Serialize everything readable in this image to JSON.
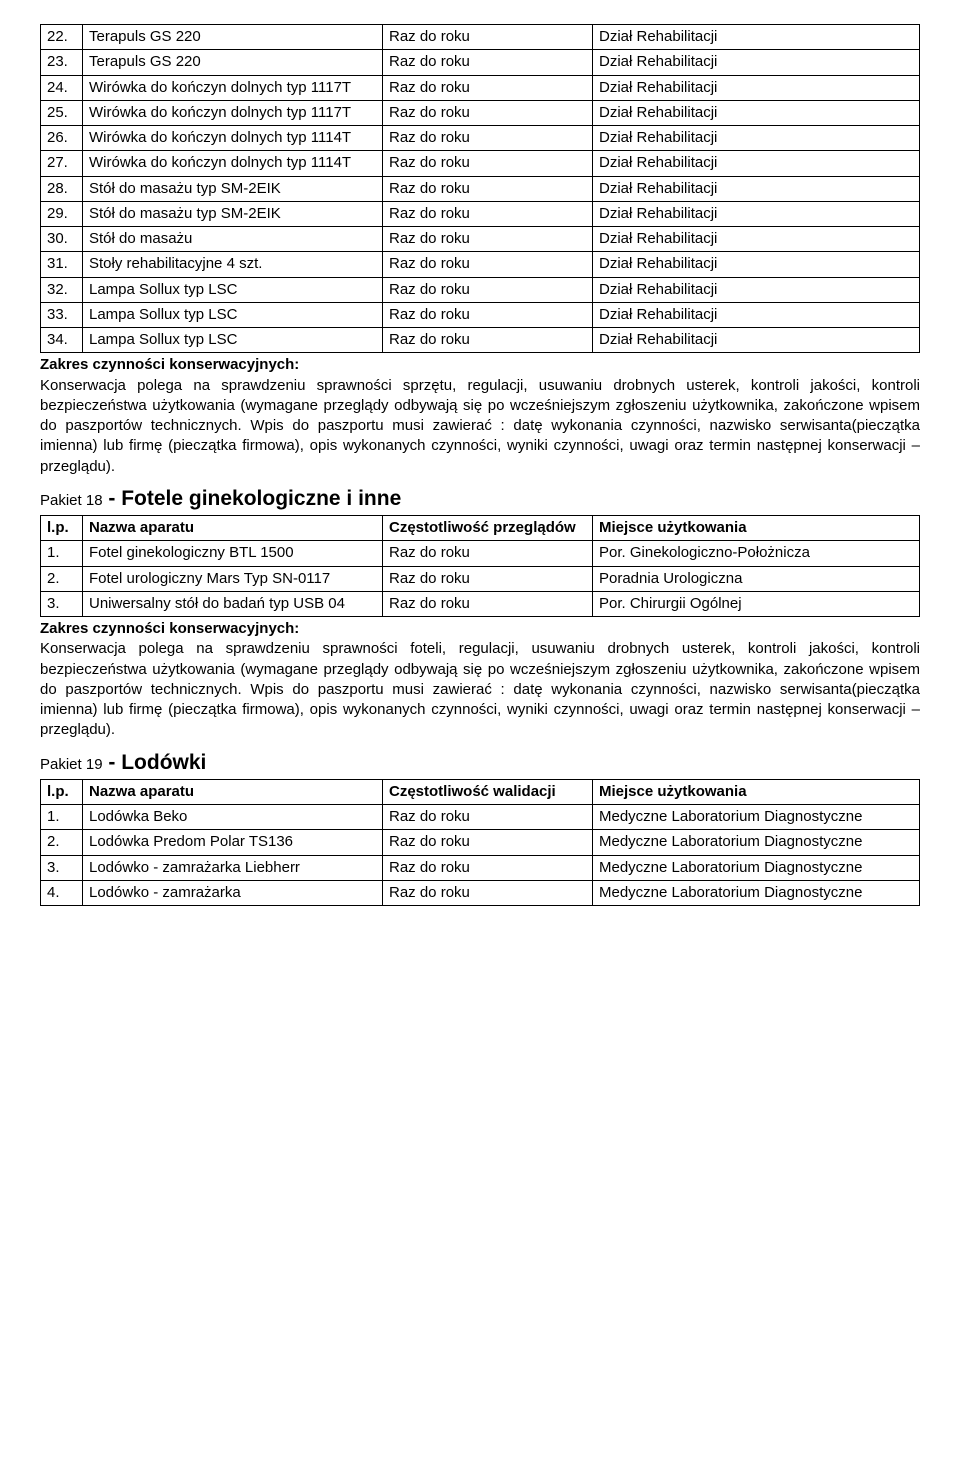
{
  "table1": {
    "rows": [
      {
        "n": "22.",
        "name": "Terapuls GS 220",
        "freq": "Raz do roku",
        "loc": "Dział Rehabilitacji"
      },
      {
        "n": "23.",
        "name": "Terapuls GS 220",
        "freq": "Raz do roku",
        "loc": "Dział Rehabilitacji"
      },
      {
        "n": "24.",
        "name": "Wirówka do kończyn dolnych typ 1117T",
        "freq": "Raz do roku",
        "loc": "Dział Rehabilitacji"
      },
      {
        "n": "25.",
        "name": "Wirówka do kończyn dolnych typ 1117T",
        "freq": "Raz do roku",
        "loc": "Dział Rehabilitacji"
      },
      {
        "n": "26.",
        "name": "Wirówka do kończyn dolnych typ 1114T",
        "freq": "Raz do roku",
        "loc": "Dział Rehabilitacji"
      },
      {
        "n": "27.",
        "name": "Wirówka do kończyn dolnych typ 1114T",
        "freq": "Raz do roku",
        "loc": "Dział Rehabilitacji"
      },
      {
        "n": "28.",
        "name": "Stół do masażu typ SM-2EIK",
        "freq": "Raz do roku",
        "loc": "Dział Rehabilitacji"
      },
      {
        "n": "29.",
        "name": "Stół do masażu typ SM-2EIK",
        "freq": "Raz do roku",
        "loc": "Dział Rehabilitacji"
      },
      {
        "n": "30.",
        "name": "Stół do masażu",
        "freq": "Raz do roku",
        "loc": "Dział Rehabilitacji"
      },
      {
        "n": "31.",
        "name": "Stoły rehabilitacyjne 4 szt.",
        "freq": "Raz do roku",
        "loc": "Dział Rehabilitacji"
      },
      {
        "n": "32.",
        "name": "Lampa Sollux  typ LSC",
        "freq": "Raz do roku",
        "loc": "Dział Rehabilitacji"
      },
      {
        "n": "33.",
        "name": "Lampa Sollux  typ LSC",
        "freq": "Raz do roku",
        "loc": "Dział Rehabilitacji"
      },
      {
        "n": "34.",
        "name": "Lampa Sollux  typ LSC",
        "freq": "Raz do roku",
        "loc": "Dział Rehabilitacji"
      }
    ]
  },
  "para1_heading": "Zakres czynności konserwacyjnych:",
  "para1": "Konserwacja polega na sprawdzeniu sprawności sprzętu, regulacji, usuwaniu drobnych usterek, kontroli jakości, kontroli bezpieczeństwa użytkowania  (wymagane przeglądy odbywają się po wcześniejszym zgłoszeniu użytkownika, zakończone wpisem do paszportów technicznych. Wpis do paszportu musi zawierać : datę wykonania czynności, nazwisko serwisanta(pieczątka imienna) lub firmę (pieczątka firmowa), opis wykonanych czynności, wyniki czynności, uwagi oraz termin następnej konserwacji – przeglądu).",
  "section18_prefix": "Pakiet 18",
  "section18_suffix": " - Fotele ginekologiczne i inne",
  "table2": {
    "header": {
      "n": "l.p.",
      "name": "Nazwa aparatu",
      "freq": "Częstotliwość przeglądów",
      "loc": "Miejsce użytkowania"
    },
    "rows": [
      {
        "n": "1.",
        "name": "Fotel ginekologiczny BTL 1500",
        "freq": "Raz do roku",
        "loc": "Por. Ginekologiczno-Położnicza"
      },
      {
        "n": "2.",
        "name": "Fotel urologiczny Mars Typ SN-0117",
        "freq": "Raz do roku",
        "loc": "Poradnia Urologiczna"
      },
      {
        "n": "3.",
        "name": "Uniwersalny stół do badań typ USB 04",
        "freq": "Raz do roku",
        "loc": "Por. Chirurgii Ogólnej"
      }
    ]
  },
  "para2_heading": "Zakres czynności konserwacyjnych:",
  "para2": "Konserwacja polega na sprawdzeniu sprawności foteli, regulacji, usuwaniu drobnych usterek, kontroli jakości, kontroli bezpieczeństwa użytkowania (wymagane przeglądy odbywają się po wcześniejszym zgłoszeniu użytkownika, zakończone wpisem do paszportów technicznych. Wpis do paszportu musi zawierać : datę wykonania czynności, nazwisko serwisanta(pieczątka imienna) lub  firmę (pieczątka firmowa), opis wykonanych czynności, wyniki czynności, uwagi oraz termin następnej konserwacji – przeglądu).",
  "section19_prefix": "Pakiet 19",
  "section19_suffix": " -  Lodówki",
  "table3": {
    "header": {
      "n": "l.p.",
      "name": "Nazwa aparatu",
      "freq": "Częstotliwość walidacji",
      "loc": "Miejsce użytkowania"
    },
    "rows": [
      {
        "n": "1.",
        "name": "Lodówka Beko",
        "freq": "Raz do roku",
        "loc": "Medyczne Laboratorium Diagnostyczne"
      },
      {
        "n": "2.",
        "name": "Lodówka  Predom Polar TS136",
        "freq": "Raz do roku",
        "loc": "Medyczne Laboratorium Diagnostyczne"
      },
      {
        "n": "3.",
        "name": "Lodówko - zamrażarka Liebherr",
        "freq": "Raz do roku",
        "loc": "Medyczne Laboratorium Diagnostyczne"
      },
      {
        "n": "4.",
        "name": "Lodówko - zamrażarka",
        "freq": "Raz do roku",
        "loc": "Medyczne Laboratorium Diagnostyczne"
      }
    ]
  }
}
